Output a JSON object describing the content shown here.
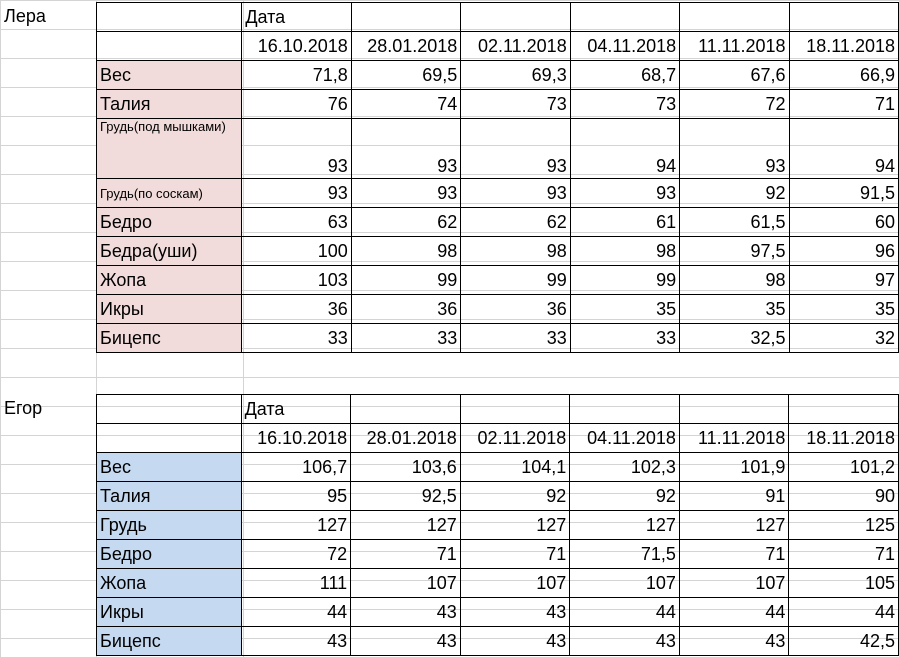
{
  "sheet": {
    "lera": {
      "name": "Лера",
      "header_label": "Дата",
      "dates": [
        "16.10.2018",
        "28.01.2018",
        "02.11.2018",
        "04.11.2018",
        "11.11.2018",
        "18.11.2018"
      ],
      "rows": [
        {
          "label": "Вес",
          "values": [
            "71,8",
            "69,5",
            "69,3",
            "68,7",
            "67,6",
            "66,9"
          ]
        },
        {
          "label": "Талия",
          "values": [
            "76",
            "74",
            "73",
            "73",
            "72",
            "71"
          ]
        },
        {
          "label": "Грудь(под мышками)",
          "values": [
            "93",
            "93",
            "93",
            "94",
            "93",
            "94"
          ]
        },
        {
          "label": "Грудь(по соскам)",
          "values": [
            "93",
            "93",
            "93",
            "93",
            "92",
            "91,5"
          ]
        },
        {
          "label": "Бедро",
          "values": [
            "63",
            "62",
            "62",
            "61",
            "61,5",
            "60"
          ]
        },
        {
          "label": "Бедра(уши)",
          "values": [
            "100",
            "98",
            "98",
            "98",
            "97,5",
            "96"
          ]
        },
        {
          "label": "Жопа",
          "values": [
            "103",
            "99",
            "99",
            "99",
            "98",
            "97"
          ]
        },
        {
          "label": "Икры",
          "values": [
            "36",
            "36",
            "36",
            "35",
            "35",
            "35"
          ]
        },
        {
          "label": "Бицепс",
          "values": [
            "33",
            "33",
            "33",
            "33",
            "32,5",
            "32"
          ]
        }
      ]
    },
    "egor": {
      "name": "Егор",
      "header_label": "Дата",
      "dates": [
        "16.10.2018",
        "28.01.2018",
        "02.11.2018",
        "04.11.2018",
        "11.11.2018",
        "18.11.2018"
      ],
      "rows": [
        {
          "label": "Вес",
          "values": [
            "106,7",
            "103,6",
            "104,1",
            "102,3",
            "101,9",
            "101,2"
          ]
        },
        {
          "label": "Талия",
          "values": [
            "95",
            "92,5",
            "92",
            "92",
            "91",
            "90"
          ]
        },
        {
          "label": "Грудь",
          "values": [
            "127",
            "127",
            "127",
            "127",
            "127",
            "125"
          ]
        },
        {
          "label": "Бедро",
          "values": [
            "72",
            "71",
            "71",
            "71,5",
            "71",
            "71"
          ]
        },
        {
          "label": "Жопа",
          "values": [
            "111",
            "107",
            "107",
            "107",
            "107",
            "105"
          ]
        },
        {
          "label": "Икры",
          "values": [
            "44",
            "43",
            "43",
            "44",
            "44",
            "44"
          ]
        },
        {
          "label": "Бицепс",
          "values": [
            "43",
            "43",
            "43",
            "43",
            "43",
            "42,5"
          ]
        }
      ]
    }
  },
  "colors": {
    "lera_label_fill": "#f2dcdb",
    "egor_label_fill": "#c5d9f1",
    "gridline": "#d4d4d4",
    "border": "#000000"
  }
}
